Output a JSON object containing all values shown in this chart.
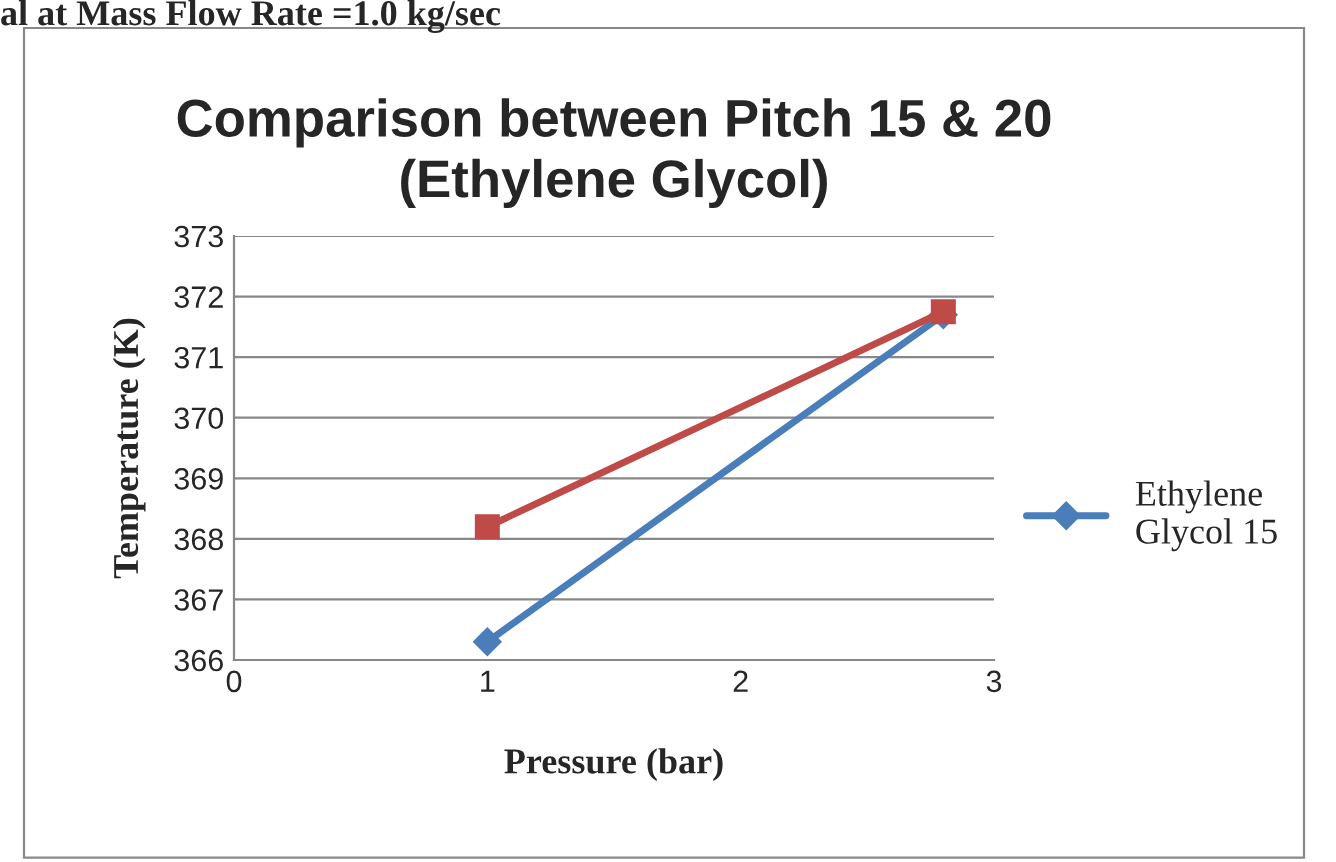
{
  "chart_data": {
    "type": "line",
    "title": "Comparison between Pitch 15 & 20\n(Ethylene Glycol)",
    "xlabel": "Pressure (bar)",
    "ylabel": "Temperature (K)",
    "annotations": [
      "al at Mass Flow Rate =1.0 kg/sec"
    ],
    "series": [
      {
        "name": "Ethylene\nGlycol 15",
        "color": "#4a7ebb",
        "marker": "diamond",
        "values": [
          366.3,
          371.7
        ]
      },
      {
        "color": "#be4b48",
        "marker": "square",
        "values": [
          368.2,
          371.75
        ]
      }
    ],
    "x": [
      1,
      2.8
    ],
    "xlim": [
      0,
      3
    ],
    "xticks": [
      0,
      1,
      2,
      3
    ],
    "ylim": [
      366,
      373
    ],
    "yticks": [
      366,
      367,
      368,
      369,
      370,
      371,
      372,
      373
    ],
    "grid": "y",
    "legend": "right",
    "line_style": "solid"
  }
}
